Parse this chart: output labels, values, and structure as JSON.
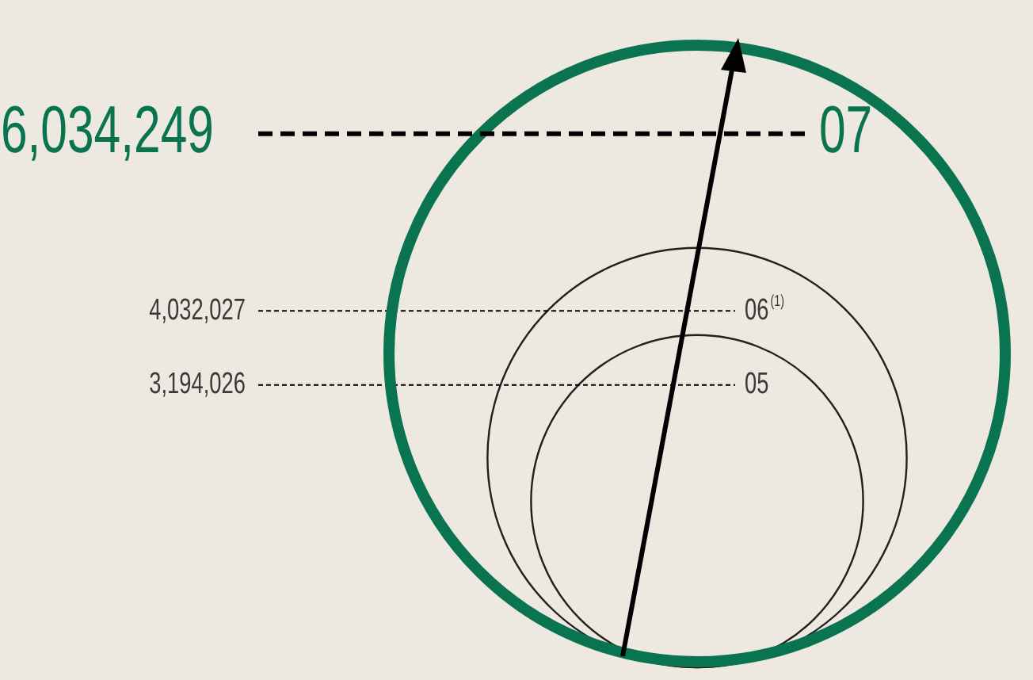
{
  "chart_data": {
    "type": "other",
    "categories": [
      "05",
      "06$^{(1)}$",
      "07"
    ],
    "values": [
      3194026,
      4032027,
      6034249
    ],
    "value_labels": [
      "3,194,026",
      "4,032,027",
      "6,034,249"
    ],
    "colors": [
      "#231f20",
      "#231f20",
      "#0a7350"
    ]
  }
}
